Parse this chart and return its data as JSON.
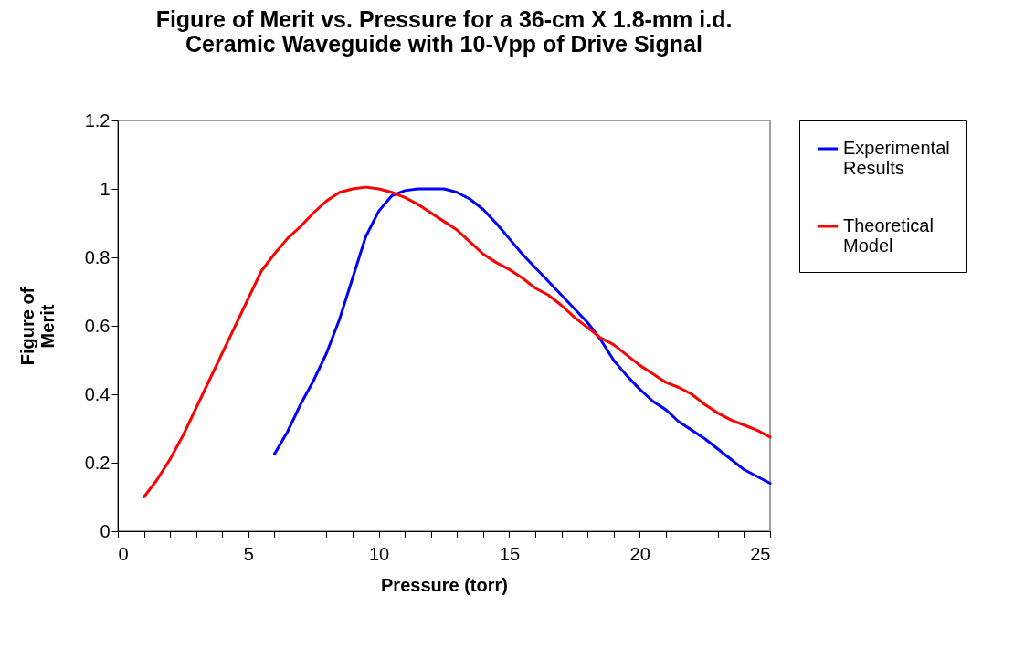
{
  "chart_data": {
    "type": "line",
    "title": "Figure of Merit vs. Pressure for a 36-cm X 1.8-mm i.d. Ceramic Waveguide with 10-Vpp of Drive Signal",
    "xlabel": "Pressure (torr)",
    "ylabel": "Figure of Merit",
    "xlim": [
      0,
      25
    ],
    "ylim": [
      0,
      1.2
    ],
    "xticks": [
      0,
      {
        "value": 1,
        "label": null
      },
      {
        "value": 2,
        "label": null
      },
      {
        "value": 3,
        "label": null
      },
      {
        "value": 4,
        "label": null
      },
      5,
      {
        "value": 6,
        "label": null
      },
      {
        "value": 7,
        "label": null
      },
      {
        "value": 8,
        "label": null
      },
      {
        "value": 9,
        "label": null
      },
      10,
      {
        "value": 11,
        "label": null
      },
      {
        "value": 12,
        "label": null
      },
      {
        "value": 13,
        "label": null
      },
      {
        "value": 14,
        "label": null
      },
      15,
      {
        "value": 16,
        "label": null
      },
      {
        "value": 17,
        "label": null
      },
      {
        "value": 18,
        "label": null
      },
      {
        "value": 19,
        "label": null
      },
      20,
      {
        "value": 21,
        "label": null
      },
      {
        "value": 22,
        "label": null
      },
      {
        "value": 23,
        "label": null
      },
      {
        "value": 24,
        "label": null
      },
      25
    ],
    "yticks": [
      0,
      0.2,
      0.4,
      0.6,
      0.8,
      1,
      1.2
    ],
    "grid": false,
    "legend": "right",
    "marker": "none",
    "line_style": "solid",
    "series": [
      {
        "name": "Experimental Results",
        "color": "#0000ff",
        "x": [
          6,
          6.5,
          7,
          7.5,
          8,
          8.5,
          9,
          9.5,
          10,
          10.5,
          11,
          11.5,
          12,
          12.5,
          13,
          13.5,
          14,
          14.5,
          15,
          15.5,
          16,
          16.5,
          17,
          17.5,
          18,
          18.5,
          19,
          19.5,
          20,
          20.5,
          21,
          21.5,
          22,
          22.5,
          23,
          23.5,
          24,
          24.5,
          25
        ],
        "values": [
          0.225,
          0.29,
          0.37,
          0.44,
          0.52,
          0.62,
          0.74,
          0.86,
          0.935,
          0.98,
          0.995,
          1.0,
          1.0,
          1.0,
          0.99,
          0.97,
          0.94,
          0.9,
          0.855,
          0.81,
          0.77,
          0.73,
          0.69,
          0.65,
          0.61,
          0.56,
          0.5,
          0.455,
          0.415,
          0.38,
          0.355,
          0.32,
          0.295,
          0.27,
          0.24,
          0.21,
          0.18,
          0.16,
          0.14
        ]
      },
      {
        "name": "Theoretical Model",
        "color": "#ff0000",
        "x": [
          1,
          1.5,
          2,
          2.5,
          3,
          3.5,
          4,
          4.5,
          5,
          5.5,
          6,
          6.5,
          7,
          7.5,
          8,
          8.5,
          9,
          9.5,
          10,
          10.5,
          11,
          11.5,
          12,
          12.5,
          13,
          13.5,
          14,
          14.5,
          15,
          15.5,
          16,
          16.5,
          17,
          17.5,
          18,
          18.5,
          19,
          19.5,
          20,
          20.5,
          21,
          21.5,
          22,
          22.5,
          23,
          23.5,
          24,
          24.5,
          25
        ],
        "values": [
          0.1,
          0.15,
          0.21,
          0.28,
          0.36,
          0.44,
          0.52,
          0.6,
          0.68,
          0.76,
          0.81,
          0.855,
          0.89,
          0.93,
          0.965,
          0.99,
          1.0,
          1.005,
          1.0,
          0.99,
          0.975,
          0.955,
          0.93,
          0.905,
          0.88,
          0.845,
          0.81,
          0.785,
          0.765,
          0.74,
          0.71,
          0.69,
          0.66,
          0.625,
          0.595,
          0.565,
          0.545,
          0.515,
          0.485,
          0.46,
          0.435,
          0.42,
          0.4,
          0.37,
          0.345,
          0.325,
          0.31,
          0.295,
          0.275
        ]
      }
    ]
  }
}
